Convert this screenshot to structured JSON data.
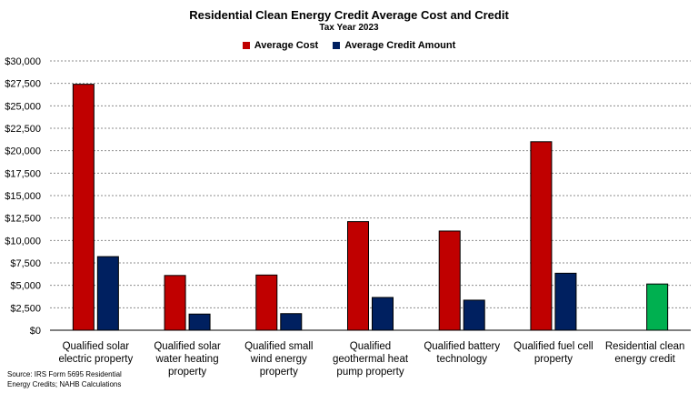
{
  "chart_data": {
    "type": "bar",
    "title": "Residential Clean Energy Credit Average Cost and Credit",
    "subtitle": "Tax Year 2023",
    "categories": [
      [
        "Qualified solar",
        "electric property"
      ],
      [
        "Qualified solar",
        "water heating",
        "property"
      ],
      [
        "Qualified small",
        "wind energy",
        "property"
      ],
      [
        "Qualified",
        "geothermal heat",
        "pump property"
      ],
      [
        "Qualified battery",
        "technology"
      ],
      [
        "Qualified fuel cell",
        "property"
      ],
      [
        "Residential clean",
        "energy credit"
      ]
    ],
    "series": [
      {
        "name": "Average Cost",
        "color": "#c00000",
        "values": [
          27400,
          6100,
          6150,
          12100,
          11050,
          21000,
          null
        ]
      },
      {
        "name": "Average Credit Amount",
        "color": "#002060",
        "values": [
          8200,
          1800,
          1850,
          3650,
          3350,
          6350,
          null
        ]
      }
    ],
    "highlight": {
      "category_index": 6,
      "value": 5150,
      "color": "#00b050"
    },
    "ylim": [
      0,
      30000
    ],
    "ytick_step": 2500,
    "ytick_labels": [
      "$0",
      "$2,500",
      "$5,000",
      "$7,500",
      "$10,000",
      "$12,500",
      "$15,000",
      "$17,500",
      "$20,000",
      "$22,500",
      "$25,000",
      "$27,500",
      "$30,000"
    ],
    "grid": true,
    "legend_position": "top-center"
  },
  "source": "Source: IRS Form 5695 Residential Energy Credits; NAHB Calculations"
}
